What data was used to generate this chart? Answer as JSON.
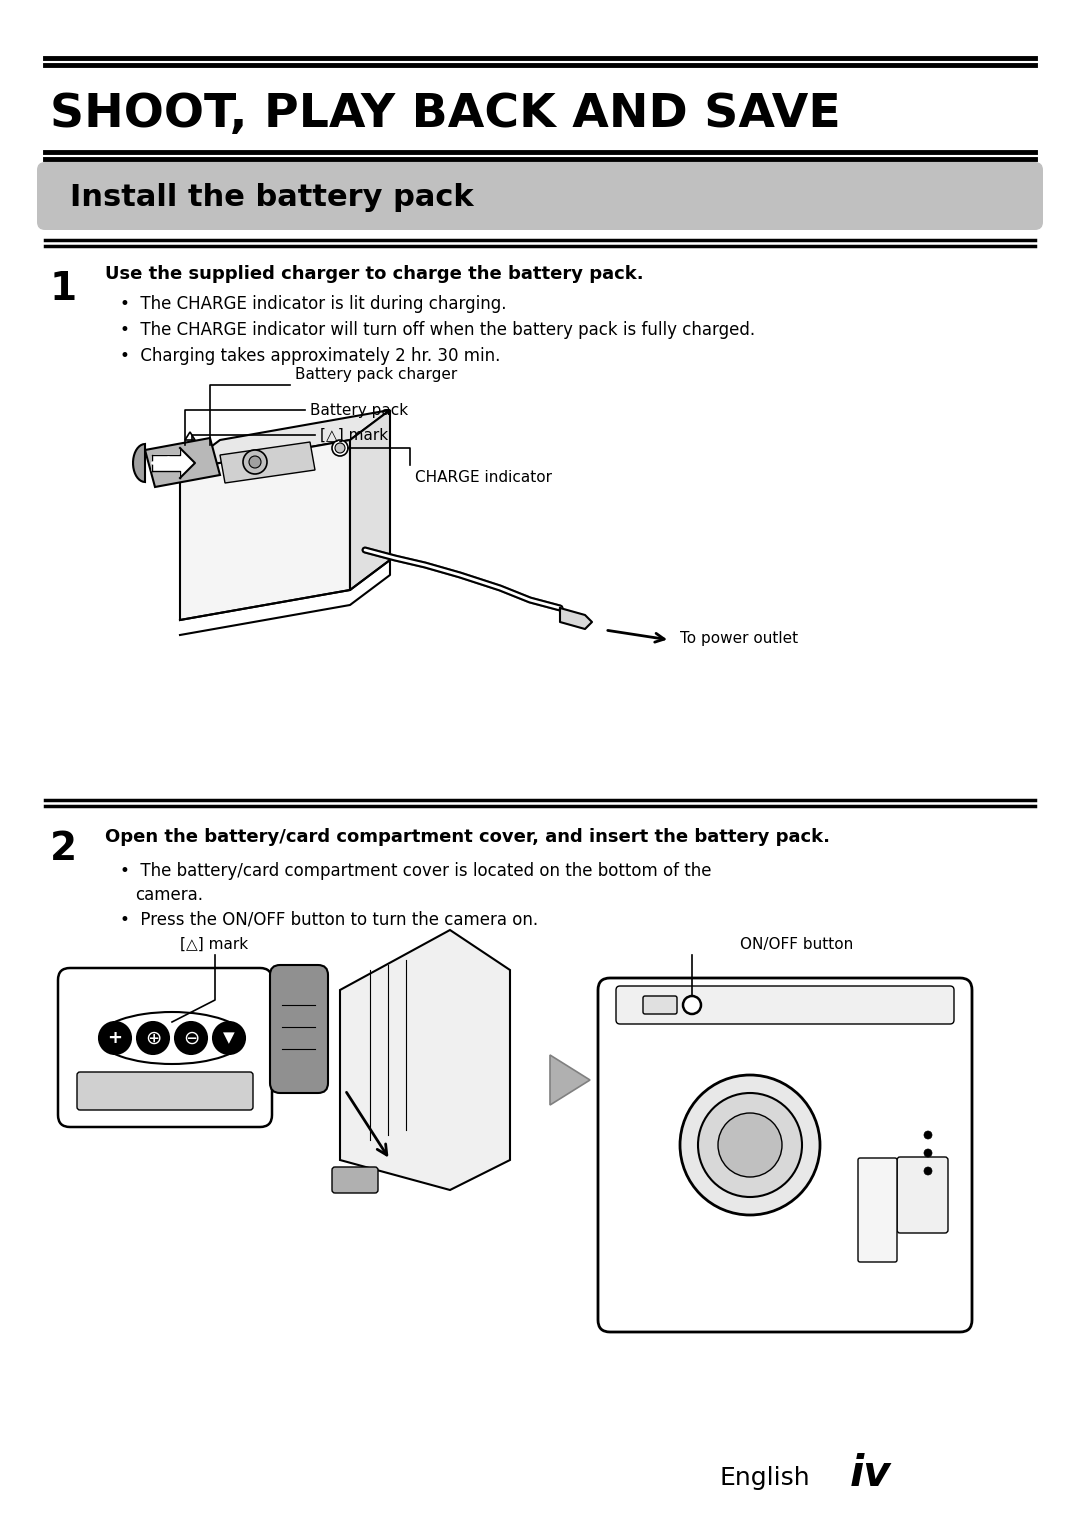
{
  "title": "SHOOT, PLAY BACK AND SAVE",
  "section_title": "Install the battery pack",
  "step1_num": "1",
  "step1_bold": "Use the supplied charger to charge the battery pack.",
  "step1_bullets": [
    "The CHARGE indicator is lit during charging.",
    "The CHARGE indicator will turn off when the battery pack is fully charged.",
    "Charging takes approximately 2 hr. 30 min."
  ],
  "label_battery_pack_charger": "Battery pack charger",
  "label_battery_pack": "Battery pack",
  "label_tri_mark": "[△] mark",
  "label_charge_indicator": "CHARGE indicator",
  "label_to_power_outlet": "To power outlet",
  "step2_num": "2",
  "step2_bold": "Open the battery/card compartment cover, and insert the battery pack.",
  "step2_bullet1a": "The battery/card compartment cover is located on the bottom of the",
  "step2_bullet1b": "camera.",
  "step2_bullet2": "Press the ON/OFF button to turn the camera on.",
  "label_tri_mark2": "[△] mark",
  "label_onoff": "ON/OFF button",
  "footer_left": "English",
  "footer_right": "iv",
  "bg_color": "#ffffff",
  "text_color": "#000000",
  "section_bg": "#c0c0c0",
  "title_fontsize": 34,
  "section_fontsize": 22,
  "body_bold_fontsize": 13,
  "body_fontsize": 12,
  "label_fontsize": 11,
  "step_num_fontsize": 28
}
